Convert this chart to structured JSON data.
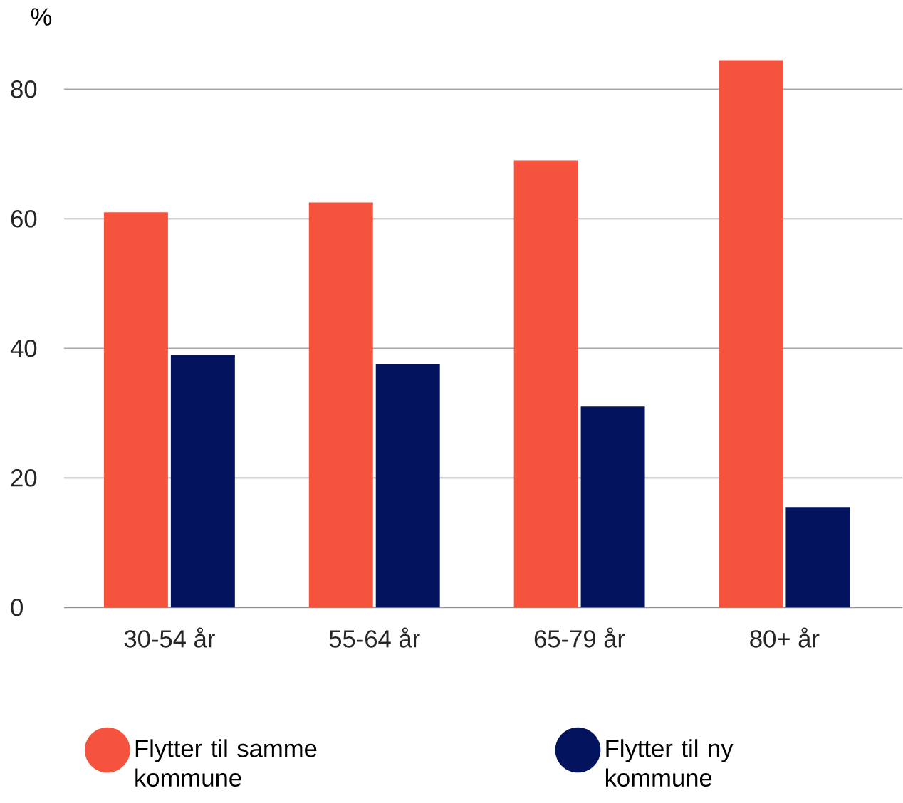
{
  "chart_data": {
    "type": "bar",
    "ylabel": "%",
    "categories": [
      "30-54 år",
      "55-64 år",
      "65-79 år",
      "80+ år"
    ],
    "series": [
      {
        "name": "Flytter til samme kommune",
        "color": "#f5533d",
        "values": [
          61,
          62.5,
          69,
          84.5
        ]
      },
      {
        "name": "Flytter til ny kommune",
        "color": "#03135e",
        "values": [
          39,
          37.5,
          31,
          15.5
        ]
      }
    ],
    "ylim": [
      0,
      85
    ],
    "yticks": [
      0,
      20,
      40,
      60,
      80
    ],
    "grid": "y",
    "legend": "bottom"
  }
}
